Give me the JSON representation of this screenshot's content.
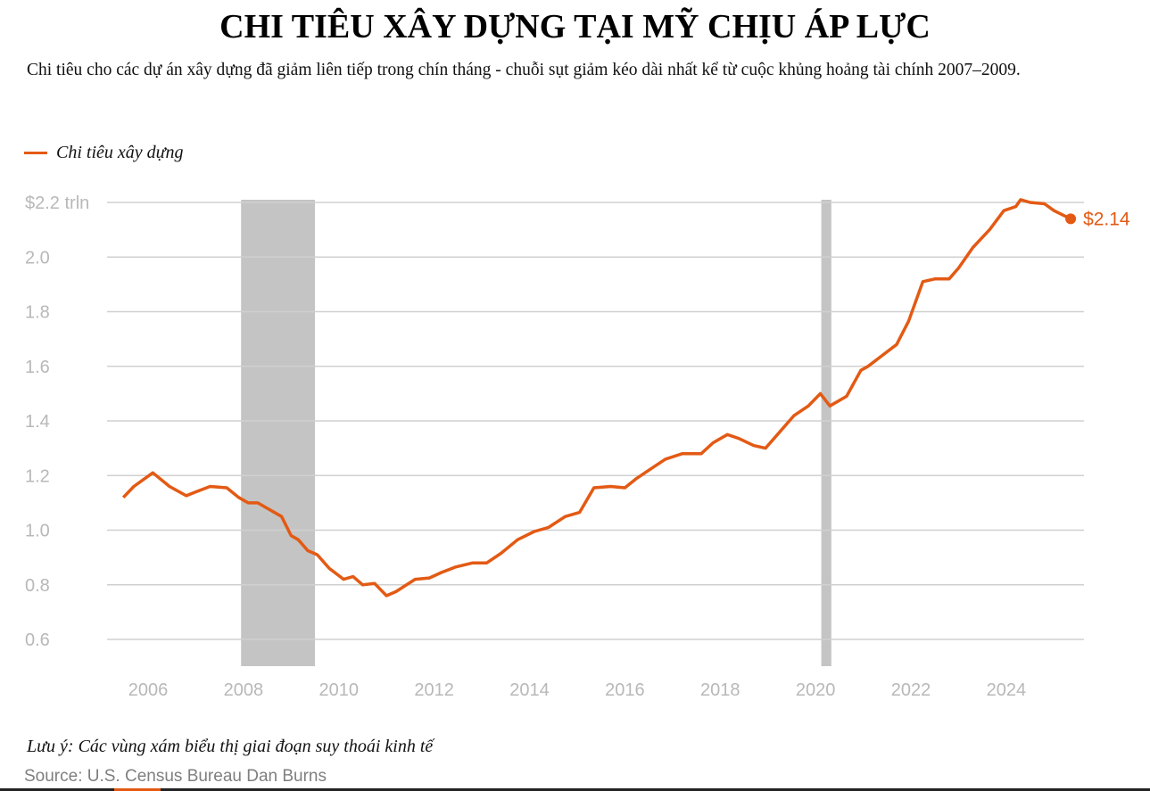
{
  "title": "CHI TIÊU XÂY DỰNG TẠI MỸ CHỊU ÁP LỰC",
  "subtitle": "Chi tiêu cho các dự án xây dựng đã giảm liên tiếp trong chín tháng - chuỗi sụt giảm kéo dài nhất kể từ cuộc khủng hoảng tài chính 2007–2009.",
  "note": "Lưu ý: Các vùng xám biểu thị giai đoạn suy thoái kinh tế",
  "source": "Source: U.S. Census Bureau  Dan Burns",
  "colors": {
    "line": "#e35a14",
    "recession": "#c4c4c4",
    "grid": "#d0d0d0"
  },
  "chart_data": {
    "type": "line",
    "title": "CHI TIÊU XÂY DỰNG TẠI MỸ CHỊU ÁP LỰC",
    "legend": [
      "Chi tiêu xây dựng"
    ],
    "legend_position": "top-left",
    "ylabel": "",
    "xlabel": "",
    "ylim": [
      0.6,
      2.2
    ],
    "xlim": [
      2005.2,
      2025.9
    ],
    "yticks": [
      {
        "v": 2.2,
        "label": "$2.2 trln"
      },
      {
        "v": 2.0,
        "label": "2.0"
      },
      {
        "v": 1.8,
        "label": "1.8"
      },
      {
        "v": 1.6,
        "label": "1.6"
      },
      {
        "v": 1.4,
        "label": "1.4"
      },
      {
        "v": 1.2,
        "label": "1.2"
      },
      {
        "v": 1.0,
        "label": "1.0"
      },
      {
        "v": 0.8,
        "label": "0.8"
      },
      {
        "v": 0.6,
        "label": "0.6"
      }
    ],
    "xticks": [
      {
        "v": 2006,
        "label": "2006"
      },
      {
        "v": 2008,
        "label": "2008"
      },
      {
        "v": 2010,
        "label": "2010"
      },
      {
        "v": 2012,
        "label": "2012"
      },
      {
        "v": 2014,
        "label": "2014"
      },
      {
        "v": 2016,
        "label": "2016"
      },
      {
        "v": 2018,
        "label": "2018"
      },
      {
        "v": 2020,
        "label": "2020"
      },
      {
        "v": 2022,
        "label": "2022"
      },
      {
        "v": 2024,
        "label": "2024"
      }
    ],
    "grid": true,
    "recessions": [
      [
        2007.95,
        2009.5
      ],
      [
        2020.12,
        2020.33
      ]
    ],
    "end_label": "$2.14",
    "series": [
      {
        "name": "Chi tiêu xây dựng",
        "x": [
          2005.48,
          2005.7,
          2006.1,
          2006.45,
          2006.8,
          2007.0,
          2007.3,
          2007.45,
          2007.65,
          2007.9,
          2008.1,
          2008.3,
          2008.5,
          2008.8,
          2009.0,
          2009.15,
          2009.35,
          2009.55,
          2009.8,
          2010.1,
          2010.3,
          2010.5,
          2010.75,
          2011.0,
          2011.2,
          2011.6,
          2011.9,
          2012.15,
          2012.45,
          2012.8,
          2013.1,
          2013.4,
          2013.75,
          2014.1,
          2014.4,
          2014.75,
          2015.05,
          2015.35,
          2015.7,
          2016.0,
          2016.25,
          2016.55,
          2016.85,
          2017.2,
          2017.6,
          2017.85,
          2018.15,
          2018.4,
          2018.7,
          2018.95,
          2019.2,
          2019.55,
          2019.85,
          2020.1,
          2020.3,
          2020.65,
          2020.95,
          2021.1,
          2021.4,
          2021.7,
          2021.95,
          2022.25,
          2022.5,
          2022.8,
          2023.0,
          2023.3,
          2023.65,
          2023.95,
          2024.2,
          2024.3,
          2024.5,
          2024.8,
          2025.0,
          2025.35
        ],
        "values": [
          1.12,
          1.16,
          1.21,
          1.16,
          1.126,
          1.14,
          1.16,
          1.158,
          1.155,
          1.12,
          1.1,
          1.1,
          1.08,
          1.05,
          0.98,
          0.965,
          0.925,
          0.91,
          0.86,
          0.82,
          0.83,
          0.8,
          0.805,
          0.76,
          0.775,
          0.82,
          0.825,
          0.845,
          0.865,
          0.88,
          0.88,
          0.915,
          0.965,
          0.995,
          1.01,
          1.05,
          1.065,
          1.155,
          1.16,
          1.155,
          1.19,
          1.225,
          1.26,
          1.28,
          1.28,
          1.32,
          1.35,
          1.335,
          1.31,
          1.3,
          1.35,
          1.42,
          1.455,
          1.5,
          1.455,
          1.49,
          1.585,
          1.6,
          1.64,
          1.68,
          1.765,
          1.91,
          1.92,
          1.92,
          1.96,
          2.035,
          2.1,
          2.17,
          2.185,
          2.21,
          2.2,
          2.195,
          2.17,
          2.14
        ]
      }
    ]
  }
}
